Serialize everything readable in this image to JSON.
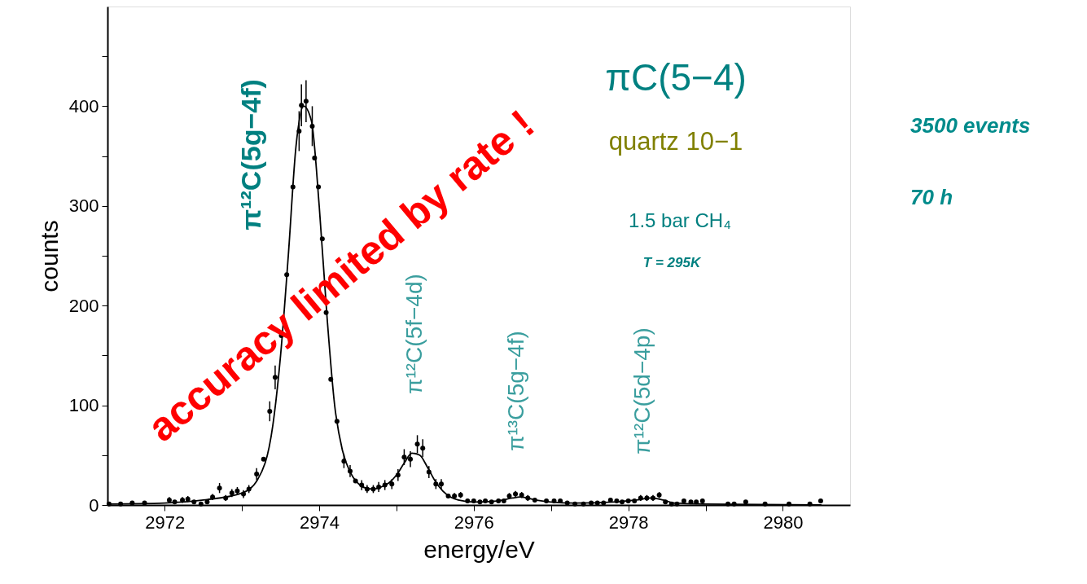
{
  "chart_data": {
    "type": "scatter",
    "xlabel": "energy/eV",
    "ylabel": "counts",
    "xlim": [
      2971.26,
      2980.87
    ],
    "ylim": [
      0,
      500
    ],
    "xticks": [
      2972,
      {
        "value": 2973,
        "label": null
      },
      2974,
      {
        "value": 2975,
        "label": null
      },
      2976,
      {
        "value": 2977,
        "label": null
      },
      2978,
      {
        "value": 2979,
        "label": null
      },
      2980
    ],
    "yticks": [
      0,
      {
        "value": 50,
        "label": null
      },
      100,
      {
        "value": 150,
        "label": null
      },
      200,
      {
        "value": 250,
        "label": null
      },
      300,
      {
        "value": 350,
        "label": null
      },
      400,
      {
        "value": 450,
        "label": null
      }
    ],
    "grid": false,
    "marker": "circle",
    "series": [
      {
        "color": "#000000",
        "x": [
          2971.28,
          2971.43,
          2971.58,
          2971.74,
          2972.06,
          2972.13,
          2972.23,
          2972.3,
          2972.38,
          2972.47,
          2972.55,
          2972.62,
          2972.71,
          2972.79,
          2972.87,
          2972.94,
          2973.02,
          2973.09,
          2973.19,
          2973.28,
          2973.36,
          2973.43,
          2973.51,
          2973.58,
          2973.66,
          2973.74,
          2973.77,
          2973.83,
          2973.91,
          2973.94,
          2973.99,
          2974.04,
          2974.09,
          2974.15,
          2974.23,
          2974.32,
          2974.4,
          2974.47,
          2974.55,
          2974.62,
          2974.7,
          2974.77,
          2974.85,
          2974.94,
          2975.02,
          2975.1,
          2975.18,
          2975.27,
          2975.34,
          2975.42,
          2975.51,
          2975.58,
          2975.67,
          2975.75,
          2975.83,
          2975.92,
          2976.0,
          2976.08,
          2976.15,
          2976.23,
          2976.32,
          2976.39,
          2976.46,
          2976.54,
          2976.62,
          2976.7,
          2976.79,
          2976.94,
          2977.04,
          2977.12,
          2977.21,
          2977.31,
          2977.42,
          2977.52,
          2977.6,
          2977.68,
          2977.77,
          2977.85,
          2977.92,
          2978.0,
          2978.08,
          2978.16,
          2978.24,
          2978.32,
          2978.4,
          2978.48,
          2978.56,
          2978.63,
          2978.72,
          2978.81,
          2978.88,
          2978.96,
          2979.29,
          2979.37,
          2979.52,
          2979.77,
          2980.08,
          2980.35,
          2980.49
        ],
        "values": [
          1,
          1,
          2,
          2,
          5,
          3,
          5,
          6,
          3,
          1,
          3,
          8,
          17,
          7,
          12,
          14,
          11,
          16,
          31,
          46,
          94,
          128,
          170,
          231,
          319,
          375,
          401,
          405,
          380,
          348,
          319,
          267,
          193,
          126,
          84,
          44,
          34,
          24,
          20,
          16,
          16,
          18,
          20,
          21,
          30,
          48,
          46,
          61,
          57,
          33,
          21,
          21,
          9,
          9,
          10,
          4,
          4,
          3,
          4,
          3,
          4,
          4,
          9,
          11,
          10,
          7,
          5,
          4,
          4,
          4,
          2,
          1,
          1,
          2,
          2,
          2,
          5,
          4,
          3,
          4,
          4,
          7,
          7,
          7,
          10,
          3,
          1,
          1,
          4,
          3,
          3,
          4,
          1,
          1,
          3,
          1,
          1,
          1,
          4
        ],
        "errors": [
          null,
          null,
          null,
          null,
          3,
          null,
          3,
          3,
          null,
          null,
          null,
          3,
          5,
          3,
          4,
          4,
          4,
          4,
          6,
          null,
          10,
          12,
          null,
          null,
          null,
          20,
          21,
          21,
          20,
          null,
          null,
          null,
          null,
          null,
          null,
          7,
          6,
          null,
          5,
          4,
          4,
          5,
          5,
          5,
          6,
          8,
          8,
          9,
          9,
          6,
          5,
          5,
          null,
          3,
          3,
          null,
          null,
          null,
          null,
          null,
          null,
          null,
          3,
          3,
          3,
          3,
          null,
          null,
          null,
          null,
          null,
          null,
          null,
          null,
          null,
          null,
          null,
          null,
          null,
          null,
          null,
          3,
          3,
          3,
          3,
          null,
          null,
          null,
          null,
          null,
          null,
          null,
          null,
          null,
          null,
          null,
          null,
          null,
          null
        ]
      },
      {
        "type": "line",
        "color": "#000000",
        "marker": "none",
        "x": [
          2971.26,
          2972.0,
          2972.5,
          2973.0,
          2973.2,
          2973.4,
          2973.5,
          2973.6,
          2973.7,
          2973.8,
          2973.9,
          2974.0,
          2974.1,
          2974.2,
          2974.3,
          2974.4,
          2974.5,
          2974.6,
          2974.7,
          2974.8,
          2974.9,
          2975.0,
          2975.1,
          2975.2,
          2975.3,
          2975.4,
          2975.5,
          2975.6,
          2975.7,
          2975.8,
          2976.0,
          2976.3,
          2976.5,
          2976.6,
          2976.8,
          2977.0,
          2977.3,
          2977.8,
          2978.1,
          2978.3,
          2978.45,
          2978.6,
          2979.0,
          2980.5
        ],
        "values": [
          1,
          2,
          5,
          12,
          25,
          80,
          150,
          250,
          360,
          400,
          385,
          300,
          190,
          100,
          55,
          33,
          22,
          17,
          16,
          18,
          22,
          30,
          42,
          52,
          50,
          38,
          24,
          14,
          8,
          5,
          3,
          4,
          7,
          8,
          5,
          3,
          2,
          3,
          5,
          7,
          5,
          2,
          1,
          0
        ]
      }
    ],
    "annotations": [
      "π¹²C(5g−4f)",
      "π¹²C(5f−4d)",
      "π¹³C(5g−4f)",
      "π¹²C(5d−4p)",
      "πC(5−4)",
      "quartz  10−1",
      "1.5 bar CH₄",
      "T = 295K",
      "accuracy limited by rate !",
      "3500 events",
      "70 h"
    ]
  }
}
